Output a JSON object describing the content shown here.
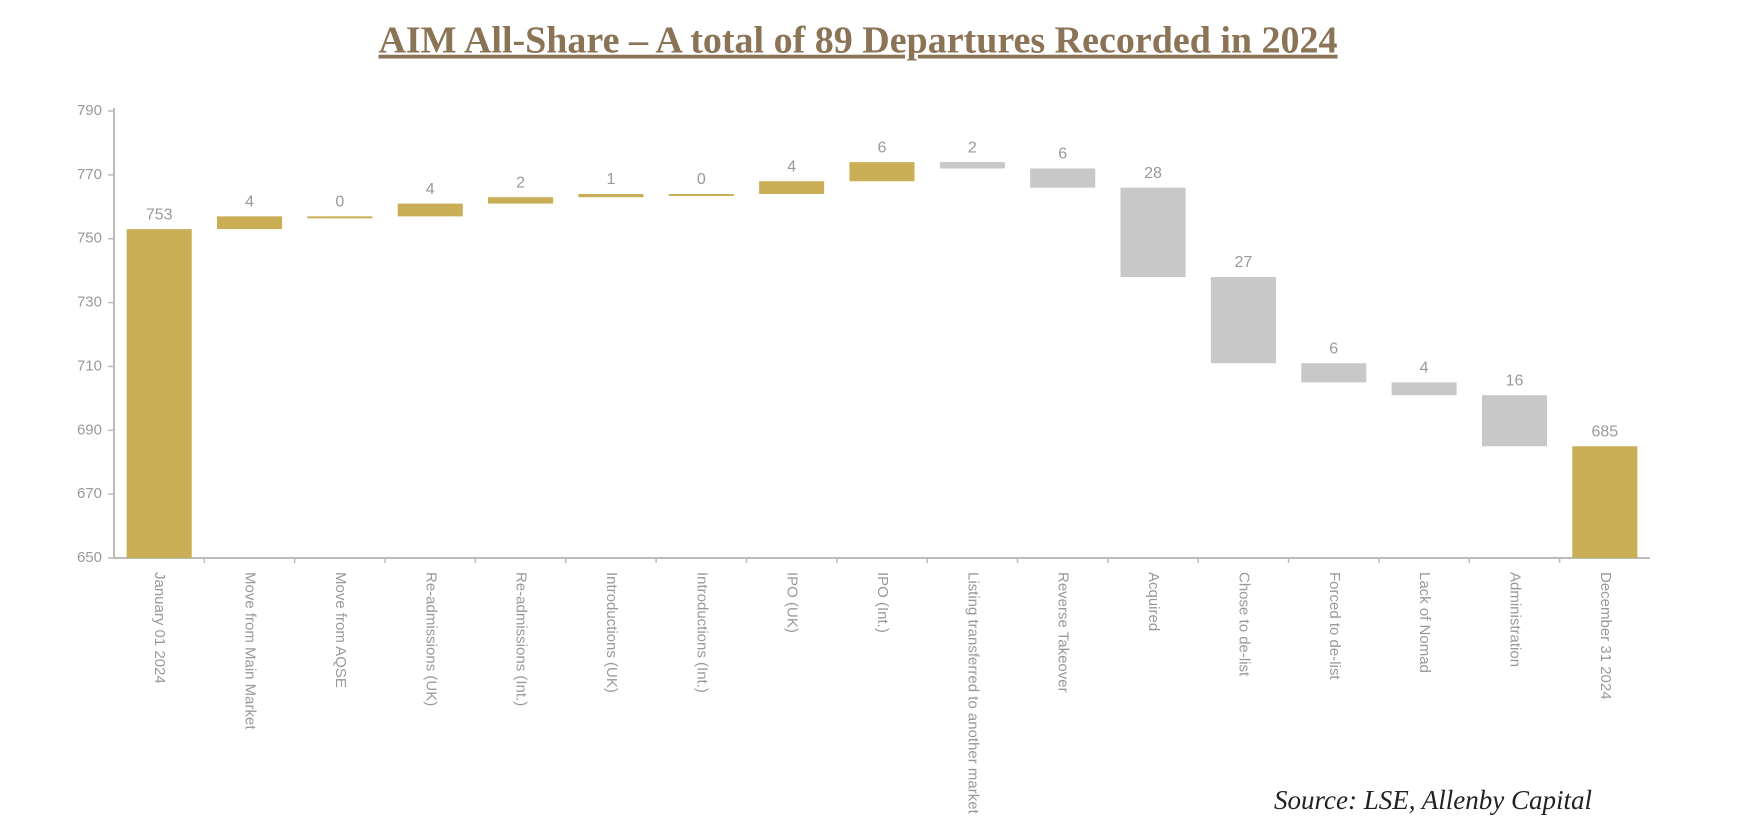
{
  "chart_data": {
    "type": "waterfall",
    "title": "AIM All-Share – A total of 89 Departures Recorded in 2024",
    "source": "Source: LSE, Allenby Capital",
    "categories": [
      "January 01 2024",
      "Move from Main Market",
      "Move from AQSE",
      "Re-admissions (UK)",
      "Re-admissions (Int.)",
      "Introductions (UK)",
      "Introductions (Int.)",
      "IPO (UK)",
      "IPO (Int.)",
      "Listing transferred to another market",
      "Reverse Takeover",
      "Acquired",
      "Chose to de-list",
      "Forced to de-list",
      "Lack of Nomad",
      "Administration",
      "December 31 2024"
    ],
    "values": [
      753,
      4,
      0,
      4,
      2,
      1,
      0,
      4,
      6,
      2,
      6,
      28,
      27,
      6,
      4,
      16,
      685
    ],
    "measure": [
      "total",
      "increase",
      "increase",
      "increase",
      "increase",
      "increase",
      "increase",
      "increase",
      "increase",
      "decrease",
      "decrease",
      "decrease",
      "decrease",
      "decrease",
      "decrease",
      "decrease",
      "total"
    ],
    "colors": {
      "total": "#c9ae55",
      "increase": "#c9ae55",
      "decrease": "#c8c8c8"
    },
    "ylim": [
      650,
      790
    ],
    "yticks": [
      650,
      670,
      690,
      710,
      730,
      750,
      770,
      790
    ]
  }
}
